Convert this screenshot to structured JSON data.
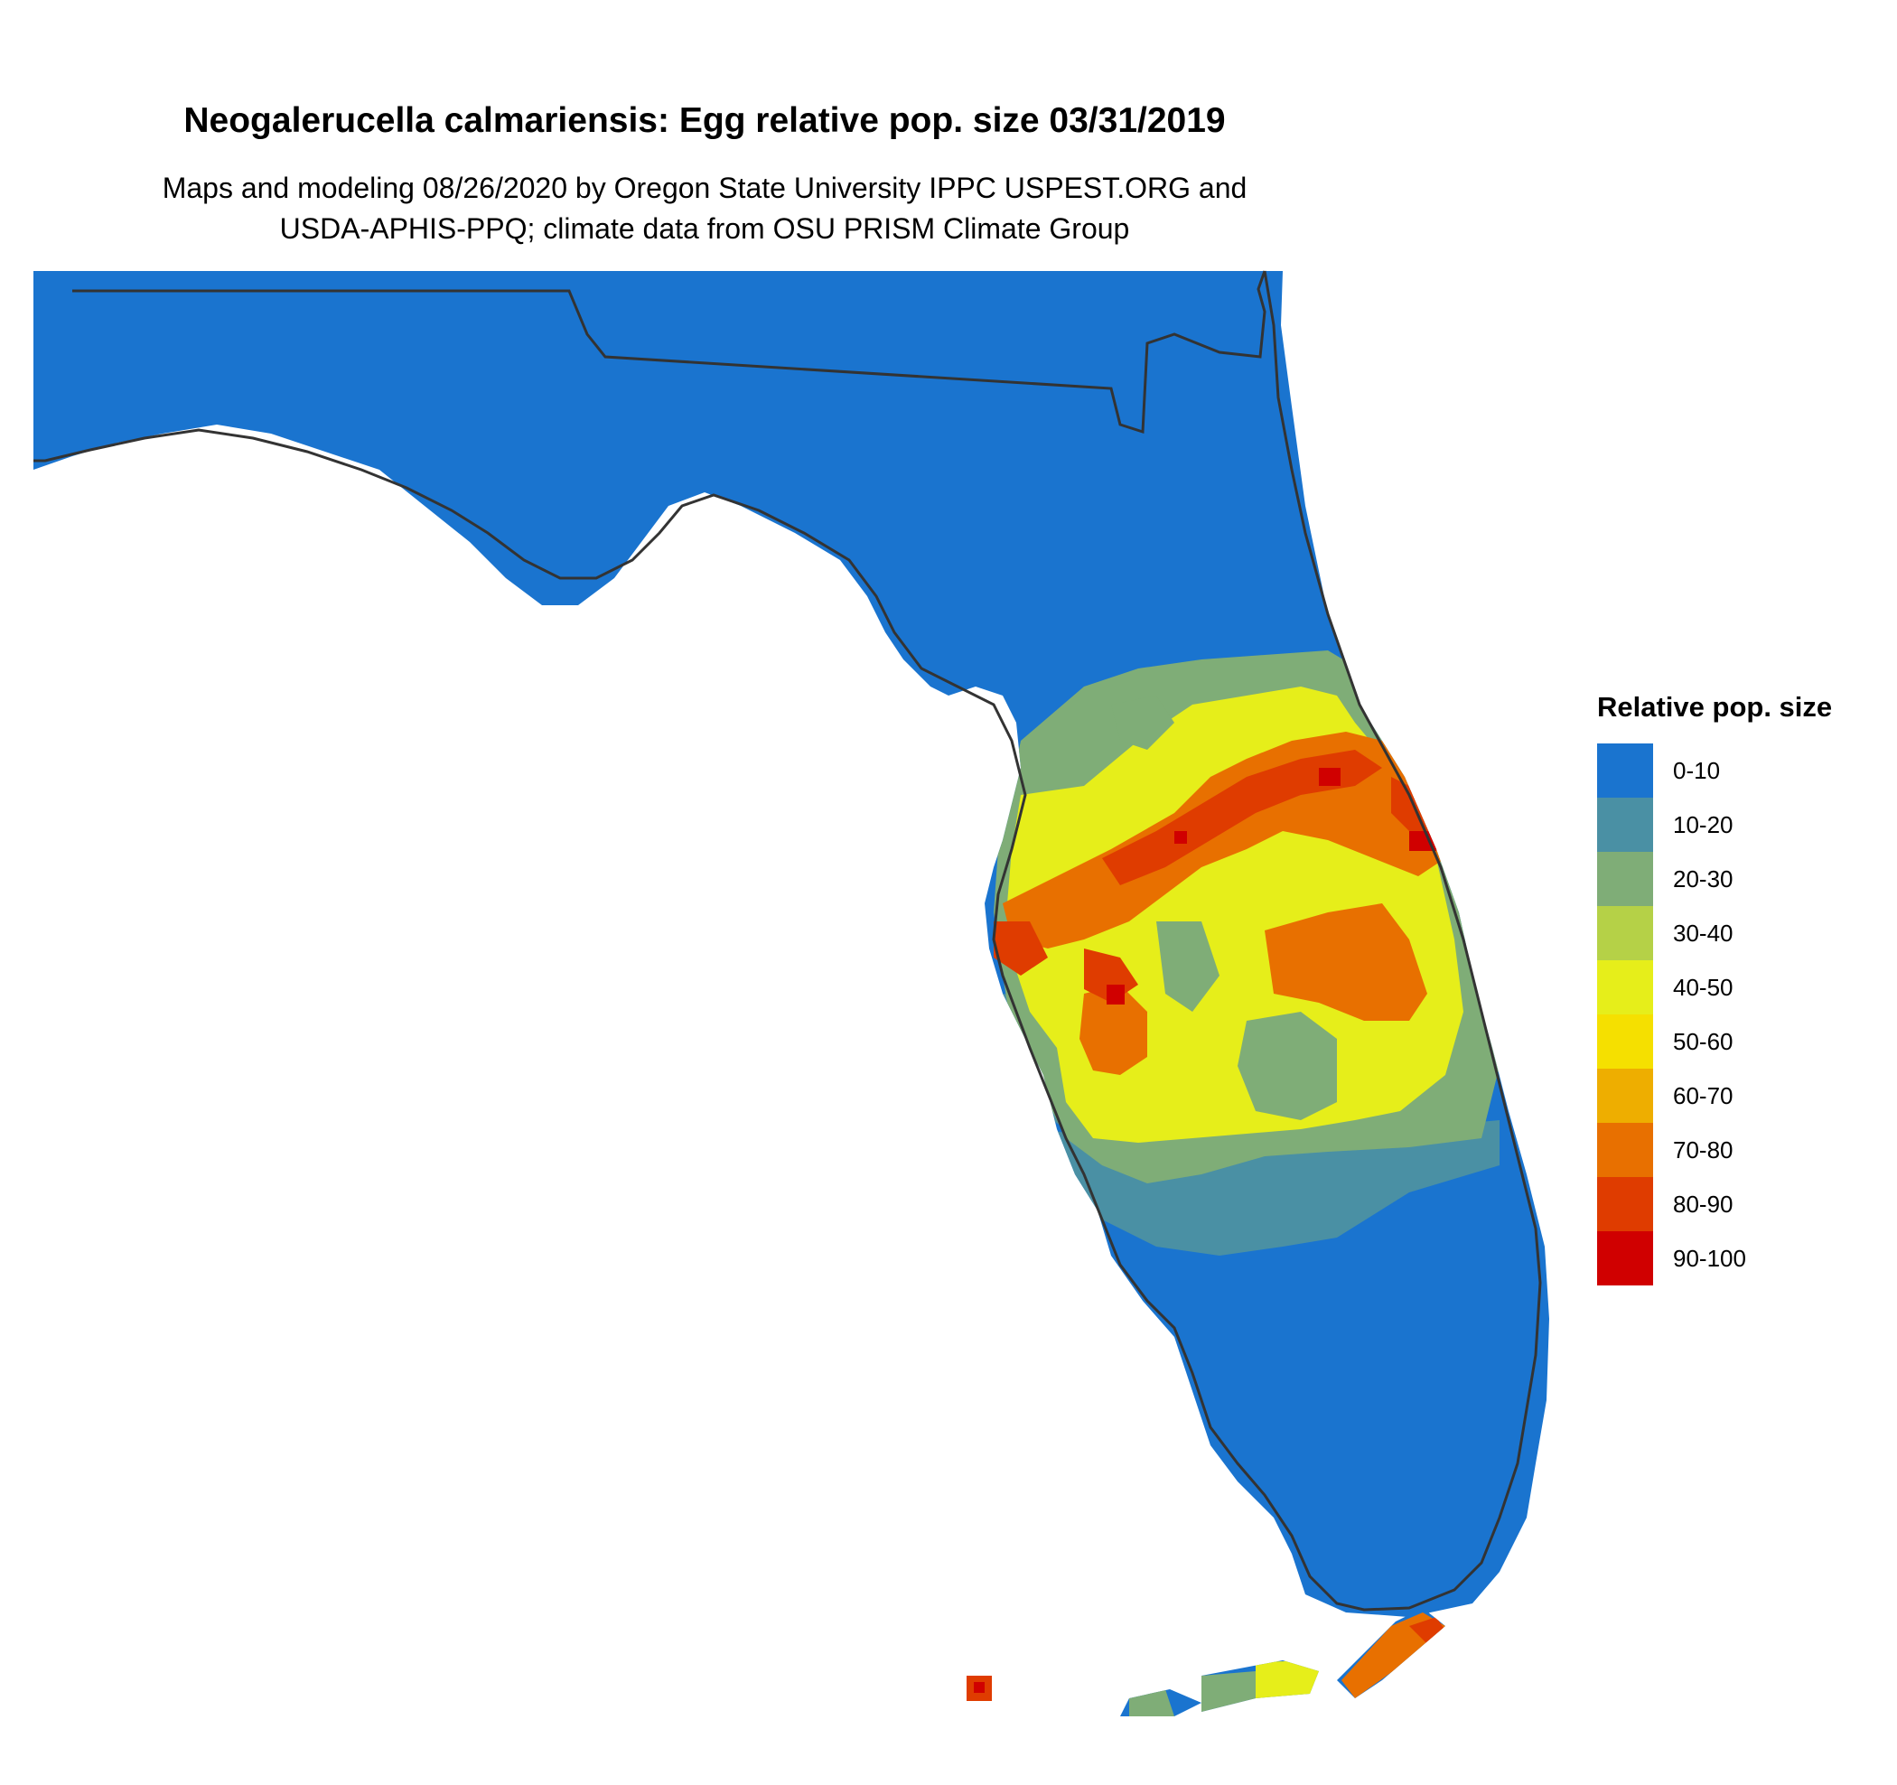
{
  "title": "Neogalerucella calmariensis: Egg relative pop. size 03/31/2019",
  "subtitle_line1": "Maps and modeling 08/26/2020 by Oregon State University IPPC USPEST.ORG and",
  "subtitle_line2": "USDA-APHIS-PPQ; climate data from OSU PRISM Climate Group",
  "legend": {
    "title": "Relative pop. size",
    "items": [
      {
        "label": "0-10",
        "color": "#1a74cf"
      },
      {
        "label": "10-20",
        "color": "#4a90a4"
      },
      {
        "label": "20-30",
        "color": "#7fad77"
      },
      {
        "label": "30-40",
        "color": "#b5d147"
      },
      {
        "label": "40-50",
        "color": "#e6ee1a"
      },
      {
        "label": "50-60",
        "color": "#f5e000"
      },
      {
        "label": "60-70",
        "color": "#eeae00"
      },
      {
        "label": "70-80",
        "color": "#e87000"
      },
      {
        "label": "80-90",
        "color": "#df3c00"
      },
      {
        "label": "90-100",
        "color": "#d00000"
      }
    ]
  },
  "boundary_color": "#333333"
}
